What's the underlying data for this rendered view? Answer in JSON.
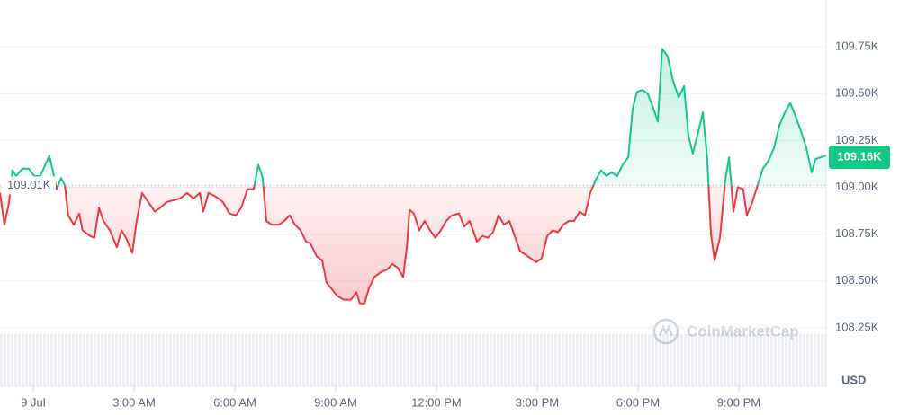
{
  "chart_data": {
    "type": "line",
    "x": [
      -0.99,
      -0.86,
      -0.72,
      -0.62,
      -0.51,
      -0.32,
      -0.13,
      0.03,
      0.21,
      0.48,
      0.62,
      0.7,
      0.83,
      0.94,
      1.04,
      1.21,
      1.37,
      1.47,
      1.69,
      1.82,
      1.96,
      2.09,
      2.28,
      2.49,
      2.63,
      2.76,
      2.95,
      3.08,
      3.24,
      3.43,
      3.62,
      3.78,
      3.96,
      4.15,
      4.37,
      4.58,
      4.77,
      4.96,
      5.06,
      5.22,
      5.44,
      5.65,
      5.84,
      6.03,
      6.19,
      6.38,
      6.56,
      6.7,
      6.83,
      6.94,
      7.1,
      7.31,
      7.47,
      7.63,
      7.79,
      7.96,
      8.12,
      8.25,
      8.44,
      8.6,
      8.73,
      8.87,
      9.05,
      9.24,
      9.46,
      9.62,
      9.72,
      9.86,
      9.99,
      10.15,
      10.37,
      10.53,
      10.69,
      10.85,
      11.01,
      11.12,
      11.2,
      11.33,
      11.49,
      11.65,
      11.81,
      11.97,
      12.13,
      12.29,
      12.46,
      12.67,
      12.83,
      12.99,
      13.21,
      13.37,
      13.53,
      13.69,
      13.85,
      14.01,
      14.17,
      14.33,
      14.49,
      14.65,
      14.81,
      14.97,
      15.13,
      15.3,
      15.46,
      15.62,
      15.78,
      15.94,
      16.1,
      16.26,
      16.42,
      16.58,
      16.74,
      16.9,
      17.06,
      17.22,
      17.38,
      17.54,
      17.71,
      17.84,
      17.97,
      18.13,
      18.29,
      18.46,
      18.59,
      18.72,
      18.88,
      19.04,
      19.21,
      19.37,
      19.5,
      19.63,
      19.8,
      19.93,
      20.06,
      20.17,
      20.28,
      20.44,
      20.6,
      20.71,
      20.84,
      20.97,
      21.13,
      21.24,
      21.4,
      21.56,
      21.72,
      21.88,
      22.05,
      22.21,
      22.37,
      22.53,
      22.69,
      22.85,
      23.01,
      23.17,
      23.28,
      23.44,
      23.6
    ],
    "values": [
      108.97,
      108.8,
      108.92,
      109.09,
      109.06,
      109.1,
      109.1,
      109.06,
      109.06,
      109.17,
      109.06,
      108.99,
      109.05,
      109.01,
      108.85,
      108.8,
      108.86,
      108.77,
      108.74,
      108.73,
      108.89,
      108.82,
      108.77,
      108.68,
      108.77,
      108.73,
      108.65,
      108.82,
      108.97,
      108.92,
      108.87,
      108.89,
      108.92,
      108.93,
      108.94,
      108.97,
      108.94,
      108.97,
      108.87,
      108.97,
      108.95,
      108.92,
      108.86,
      108.85,
      108.89,
      108.99,
      108.99,
      109.12,
      109.05,
      108.82,
      108.8,
      108.8,
      108.82,
      108.85,
      108.8,
      108.77,
      108.71,
      108.7,
      108.63,
      108.61,
      108.49,
      108.46,
      108.42,
      108.4,
      108.4,
      108.44,
      108.38,
      108.38,
      108.46,
      108.52,
      108.55,
      108.56,
      108.59,
      108.57,
      108.52,
      108.68,
      108.88,
      108.86,
      108.77,
      108.82,
      108.77,
      108.73,
      108.77,
      108.82,
      108.85,
      108.86,
      108.79,
      108.82,
      108.71,
      108.74,
      108.73,
      108.76,
      108.85,
      108.8,
      108.82,
      108.74,
      108.66,
      108.64,
      108.62,
      108.6,
      108.62,
      108.74,
      108.77,
      108.76,
      108.8,
      108.82,
      108.82,
      108.87,
      108.85,
      108.97,
      109.04,
      109.09,
      109.06,
      109.08,
      109.06,
      109.12,
      109.16,
      109.42,
      109.51,
      109.52,
      109.5,
      109.42,
      109.35,
      109.74,
      109.7,
      109.57,
      109.48,
      109.54,
      109.28,
      109.18,
      109.3,
      109.4,
      109.16,
      108.75,
      108.61,
      108.73,
      109.04,
      109.16,
      108.87,
      109.0,
      108.99,
      108.85,
      108.92,
      109.01,
      109.1,
      109.14,
      109.21,
      109.33,
      109.4,
      109.45,
      109.38,
      109.3,
      109.21,
      109.08,
      109.15,
      109.16,
      109.17
    ],
    "xlim": [
      -0.99,
      23.6
    ],
    "xticks": [
      {
        "value": 0,
        "label": "9 Jul"
      },
      {
        "value": 3,
        "label": "3:00 AM"
      },
      {
        "value": 6,
        "label": "6:00 AM"
      },
      {
        "value": 9,
        "label": "9:00 AM"
      },
      {
        "value": 12,
        "label": "12:00 PM"
      },
      {
        "value": 15,
        "label": "3:00 PM"
      },
      {
        "value": 18,
        "label": "6:00 PM"
      },
      {
        "value": 21,
        "label": "9:00 PM"
      }
    ],
    "ylim": [
      108,
      110
    ],
    "yticks": [
      {
        "value": 108.25,
        "label": "108.25K"
      },
      {
        "value": 108.5,
        "label": "108.50K"
      },
      {
        "value": 108.75,
        "label": "108.75K"
      },
      {
        "value": 109,
        "label": "109.00K"
      },
      {
        "value": 109.25,
        "label": "109.25K"
      },
      {
        "value": 109.5,
        "label": "109.50K"
      },
      {
        "value": 109.75,
        "label": "109.75K"
      }
    ],
    "baseline": {
      "value": 109.01,
      "label": "109.01K"
    },
    "last_price": {
      "value": 109.16,
      "label": "109.16K"
    },
    "up_color": "#16c784",
    "down_color": "#ea3943",
    "grid": true,
    "currency": "USD",
    "watermark": "CoinMarketCap"
  }
}
